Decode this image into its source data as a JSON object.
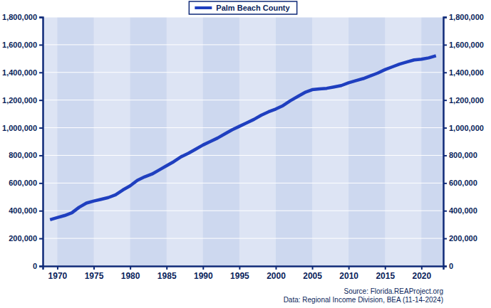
{
  "chart_data": {
    "type": "line",
    "x": [
      1969,
      1970,
      1971,
      1972,
      1973,
      1974,
      1975,
      1976,
      1977,
      1978,
      1979,
      1980,
      1981,
      1982,
      1983,
      1984,
      1985,
      1986,
      1987,
      1988,
      1989,
      1990,
      1991,
      1992,
      1993,
      1994,
      1995,
      1996,
      1997,
      1998,
      1999,
      2000,
      2001,
      2002,
      2003,
      2004,
      2005,
      2006,
      2007,
      2008,
      2009,
      2010,
      2011,
      2012,
      2013,
      2014,
      2015,
      2016,
      2017,
      2018,
      2019,
      2020,
      2021,
      2022
    ],
    "series": [
      {
        "name": "Palm Beach County",
        "color": "#1f3fbf",
        "values": [
          335000,
          350000,
          365000,
          385000,
          425000,
          455000,
          470000,
          482000,
          495000,
          515000,
          550000,
          580000,
          620000,
          645000,
          665000,
          695000,
          725000,
          755000,
          790000,
          815000,
          845000,
          875000,
          900000,
          925000,
          955000,
          985000,
          1010000,
          1035000,
          1060000,
          1090000,
          1115000,
          1135000,
          1160000,
          1195000,
          1225000,
          1255000,
          1275000,
          1280000,
          1285000,
          1295000,
          1305000,
          1325000,
          1340000,
          1355000,
          1375000,
          1395000,
          1420000,
          1440000,
          1460000,
          1475000,
          1490000,
          1495000,
          1505000,
          1520000
        ]
      }
    ],
    "xlim": [
      1968,
      2023
    ],
    "xticks": [
      1970,
      1975,
      1980,
      1985,
      1990,
      1995,
      2000,
      2005,
      2010,
      2015,
      2020
    ],
    "ylim": [
      0,
      1800000
    ],
    "yticks": [
      0,
      {
        "value": 200000,
        "label": "200,000"
      },
      {
        "value": 400000,
        "label": "400,000"
      },
      {
        "value": 600000,
        "label": "600,000"
      },
      {
        "value": 800000,
        "label": "800,000"
      },
      {
        "value": 1000000,
        "label": "1,000,000"
      },
      {
        "value": 1200000,
        "label": "1,200,000"
      },
      {
        "value": 1400000,
        "label": "1,400,000"
      },
      {
        "value": 1600000,
        "label": "1,600,000"
      },
      {
        "value": 1800000,
        "label": "1,800,000"
      }
    ],
    "grid": true,
    "legend": "top",
    "annotations": [
      "Source: Florida.REAProject.org",
      "Data: Regional Income Division, BEA (11-14-2024)"
    ]
  }
}
